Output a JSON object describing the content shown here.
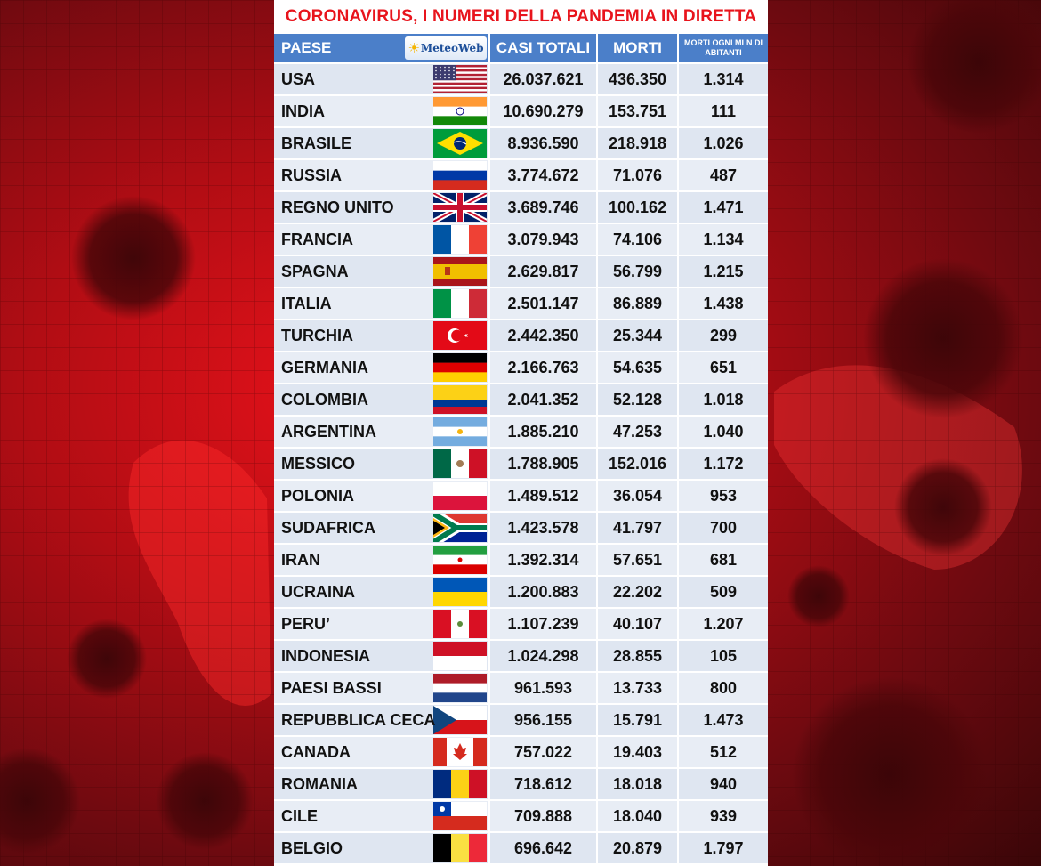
{
  "title": "CORONAVIRUS, I NUMERI DELLA PANDEMIA IN DIRETTA",
  "logo_text": "MeteoWeb",
  "colors": {
    "title": "#e8141c",
    "header_bg": "#4b7fc9",
    "row_bg": "#dfe6f1",
    "background": "#c8101a"
  },
  "chart_data": {
    "type": "table",
    "columns": [
      "PAESE",
      "CASI TOTALI",
      "MORTI",
      "MORTI OGNI MLN DI ABITANTI"
    ],
    "rows": [
      {
        "country": "USA",
        "flag": "usa-flag",
        "cases": "26.037.621",
        "deaths": "436.350",
        "per_mln": "1.314"
      },
      {
        "country": "INDIA",
        "flag": "india-flag",
        "cases": "10.690.279",
        "deaths": "153.751",
        "per_mln": "111"
      },
      {
        "country": "BRASILE",
        "flag": "brazil-flag",
        "cases": "8.936.590",
        "deaths": "218.918",
        "per_mln": "1.026"
      },
      {
        "country": "RUSSIA",
        "flag": "russia-flag",
        "cases": "3.774.672",
        "deaths": "71.076",
        "per_mln": "487"
      },
      {
        "country": "REGNO UNITO",
        "flag": "uk-flag",
        "cases": "3.689.746",
        "deaths": "100.162",
        "per_mln": "1.471"
      },
      {
        "country": "FRANCIA",
        "flag": "france-flag",
        "cases": "3.079.943",
        "deaths": "74.106",
        "per_mln": "1.134"
      },
      {
        "country": "SPAGNA",
        "flag": "spain-flag",
        "cases": "2.629.817",
        "deaths": "56.799",
        "per_mln": "1.215"
      },
      {
        "country": "ITALIA",
        "flag": "italy-flag",
        "cases": "2.501.147",
        "deaths": "86.889",
        "per_mln": "1.438"
      },
      {
        "country": "TURCHIA",
        "flag": "turkey-flag",
        "cases": "2.442.350",
        "deaths": "25.344",
        "per_mln": "299"
      },
      {
        "country": "GERMANIA",
        "flag": "germany-flag",
        "cases": "2.166.763",
        "deaths": "54.635",
        "per_mln": "651"
      },
      {
        "country": "COLOMBIA",
        "flag": "colombia-flag",
        "cases": "2.041.352",
        "deaths": "52.128",
        "per_mln": "1.018"
      },
      {
        "country": "ARGENTINA",
        "flag": "argentina-flag",
        "cases": "1.885.210",
        "deaths": "47.253",
        "per_mln": "1.040"
      },
      {
        "country": "MESSICO",
        "flag": "mexico-flag",
        "cases": "1.788.905",
        "deaths": "152.016",
        "per_mln": "1.172"
      },
      {
        "country": "POLONIA",
        "flag": "poland-flag",
        "cases": "1.489.512",
        "deaths": "36.054",
        "per_mln": "953"
      },
      {
        "country": "SUDAFRICA",
        "flag": "south-africa-flag",
        "cases": "1.423.578",
        "deaths": "41.797",
        "per_mln": "700"
      },
      {
        "country": "IRAN",
        "flag": "iran-flag",
        "cases": "1.392.314",
        "deaths": "57.651",
        "per_mln": "681"
      },
      {
        "country": "UCRAINA",
        "flag": "ukraine-flag",
        "cases": "1.200.883",
        "deaths": "22.202",
        "per_mln": "509"
      },
      {
        "country": "PERU’",
        "flag": "peru-flag",
        "cases": "1.107.239",
        "deaths": "40.107",
        "per_mln": "1.207"
      },
      {
        "country": "INDONESIA",
        "flag": "indonesia-flag",
        "cases": "1.024.298",
        "deaths": "28.855",
        "per_mln": "105"
      },
      {
        "country": "PAESI BASSI",
        "flag": "netherlands-flag",
        "cases": "961.593",
        "deaths": "13.733",
        "per_mln": "800"
      },
      {
        "country": "REPUBBLICA CECA",
        "flag": "czech-flag",
        "cases": "956.155",
        "deaths": "15.791",
        "per_mln": "1.473"
      },
      {
        "country": "CANADA",
        "flag": "canada-flag",
        "cases": "757.022",
        "deaths": "19.403",
        "per_mln": "512"
      },
      {
        "country": "ROMANIA",
        "flag": "romania-flag",
        "cases": "718.612",
        "deaths": "18.018",
        "per_mln": "940"
      },
      {
        "country": "CILE",
        "flag": "chile-flag",
        "cases": "709.888",
        "deaths": "18.040",
        "per_mln": "939"
      },
      {
        "country": "BELGIO",
        "flag": "belgium-flag",
        "cases": "696.642",
        "deaths": "20.879",
        "per_mln": "1.797"
      }
    ]
  }
}
